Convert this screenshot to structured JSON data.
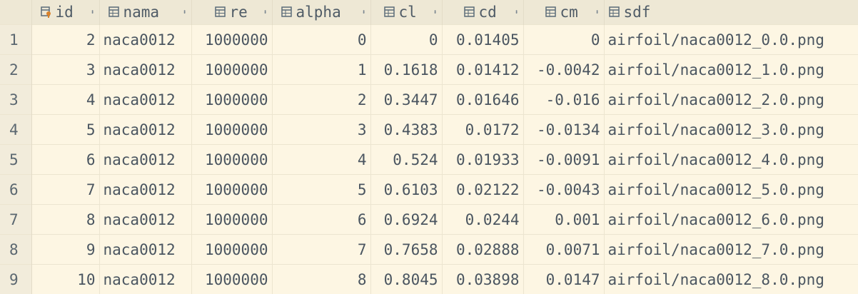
{
  "columns": [
    {
      "key": "id",
      "label": "id",
      "icon": "primary-key-column-icon"
    },
    {
      "key": "nama",
      "label": "nama",
      "icon": "column-icon"
    },
    {
      "key": "re",
      "label": "re",
      "icon": "column-icon"
    },
    {
      "key": "alpha",
      "label": "alpha",
      "icon": "column-icon"
    },
    {
      "key": "cl",
      "label": "cl",
      "icon": "column-icon"
    },
    {
      "key": "cd",
      "label": "cd",
      "icon": "column-icon"
    },
    {
      "key": "cm",
      "label": "cm",
      "icon": "column-icon"
    },
    {
      "key": "sdf",
      "label": "sdf",
      "icon": "column-icon"
    }
  ],
  "sort_glyph": "⬍",
  "rows": [
    {
      "n": "1",
      "id": "2",
      "nama": "naca0012",
      "re": "1000000",
      "alpha": "0",
      "cl": "0",
      "cd": "0.01405",
      "cm": "0",
      "sdf": "airfoil/naca0012_0.0.png"
    },
    {
      "n": "2",
      "id": "3",
      "nama": "naca0012",
      "re": "1000000",
      "alpha": "1",
      "cl": "0.1618",
      "cd": "0.01412",
      "cm": "-0.0042",
      "sdf": "airfoil/naca0012_1.0.png"
    },
    {
      "n": "3",
      "id": "4",
      "nama": "naca0012",
      "re": "1000000",
      "alpha": "2",
      "cl": "0.3447",
      "cd": "0.01646",
      "cm": "-0.016",
      "sdf": "airfoil/naca0012_2.0.png"
    },
    {
      "n": "4",
      "id": "5",
      "nama": "naca0012",
      "re": "1000000",
      "alpha": "3",
      "cl": "0.4383",
      "cd": "0.0172",
      "cm": "-0.0134",
      "sdf": "airfoil/naca0012_3.0.png"
    },
    {
      "n": "5",
      "id": "6",
      "nama": "naca0012",
      "re": "1000000",
      "alpha": "4",
      "cl": "0.524",
      "cd": "0.01933",
      "cm": "-0.0091",
      "sdf": "airfoil/naca0012_4.0.png"
    },
    {
      "n": "6",
      "id": "7",
      "nama": "naca0012",
      "re": "1000000",
      "alpha": "5",
      "cl": "0.6103",
      "cd": "0.02122",
      "cm": "-0.0043",
      "sdf": "airfoil/naca0012_5.0.png"
    },
    {
      "n": "7",
      "id": "8",
      "nama": "naca0012",
      "re": "1000000",
      "alpha": "6",
      "cl": "0.6924",
      "cd": "0.0244",
      "cm": "0.001",
      "sdf": "airfoil/naca0012_6.0.png"
    },
    {
      "n": "8",
      "id": "9",
      "nama": "naca0012",
      "re": "1000000",
      "alpha": "7",
      "cl": "0.7658",
      "cd": "0.02888",
      "cm": "0.0071",
      "sdf": "airfoil/naca0012_7.0.png"
    },
    {
      "n": "9",
      "id": "10",
      "nama": "naca0012",
      "re": "1000000",
      "alpha": "8",
      "cl": "0.8045",
      "cd": "0.03898",
      "cm": "0.0147",
      "sdf": "airfoil/naca0012_8.0.png"
    }
  ],
  "colors": {
    "background": "#fdf6e3",
    "header": "#eee8d5",
    "key_icon": "#d9822b",
    "column_icon": "#5a6b78"
  }
}
